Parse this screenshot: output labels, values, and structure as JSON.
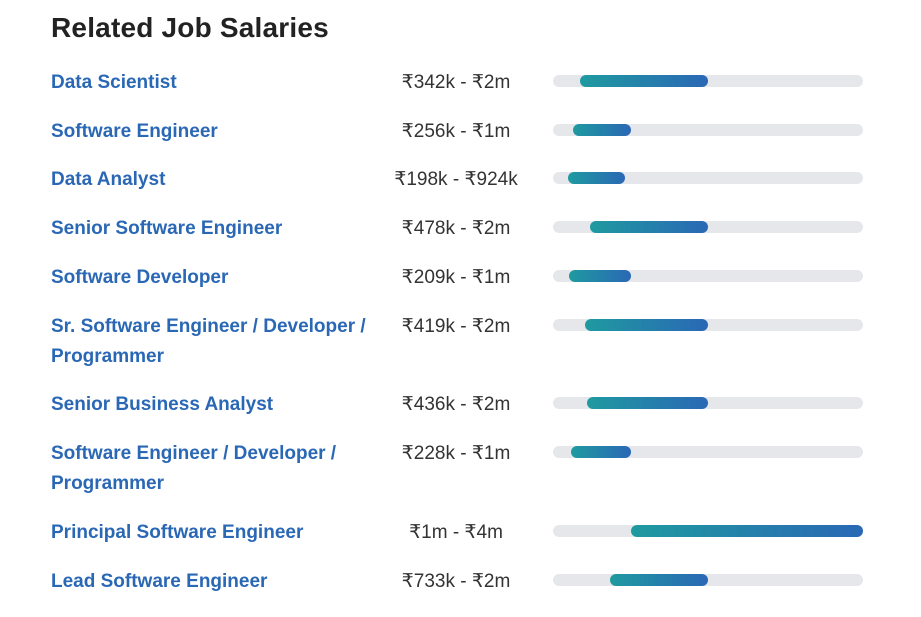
{
  "title": "Related Job Salaries",
  "colors": {
    "link": "#2a68b5",
    "bar_start": "#1f9aa0",
    "bar_end": "#2a68b5",
    "track": "#e6e7ea"
  },
  "scale_note_inr_k": {
    "min": 0,
    "max": 4000
  },
  "jobs": [
    {
      "title": "Data Scientist",
      "range": "₹342k - ₹2m",
      "low_k": 342,
      "high_k": 2000
    },
    {
      "title": "Software Engineer",
      "range": "₹256k - ₹1m",
      "low_k": 256,
      "high_k": 1000
    },
    {
      "title": "Data Analyst",
      "range": "₹198k - ₹924k",
      "low_k": 198,
      "high_k": 924
    },
    {
      "title": "Senior Software Engineer",
      "range": "₹478k - ₹2m",
      "low_k": 478,
      "high_k": 2000
    },
    {
      "title": "Software Developer",
      "range": "₹209k - ₹1m",
      "low_k": 209,
      "high_k": 1000
    },
    {
      "title": "Sr. Software Engineer / Developer / Programmer",
      "range": "₹419k - ₹2m",
      "low_k": 419,
      "high_k": 2000
    },
    {
      "title": "Senior Business Analyst",
      "range": "₹436k - ₹2m",
      "low_k": 436,
      "high_k": 2000
    },
    {
      "title": "Software Engineer / Developer / Programmer",
      "range": "₹228k - ₹1m",
      "low_k": 228,
      "high_k": 1000
    },
    {
      "title": "Principal Software Engineer",
      "range": "₹1m - ₹4m",
      "low_k": 1000,
      "high_k": 4000
    },
    {
      "title": "Lead Software Engineer",
      "range": "₹733k - ₹2m",
      "low_k": 733,
      "high_k": 2000
    }
  ]
}
